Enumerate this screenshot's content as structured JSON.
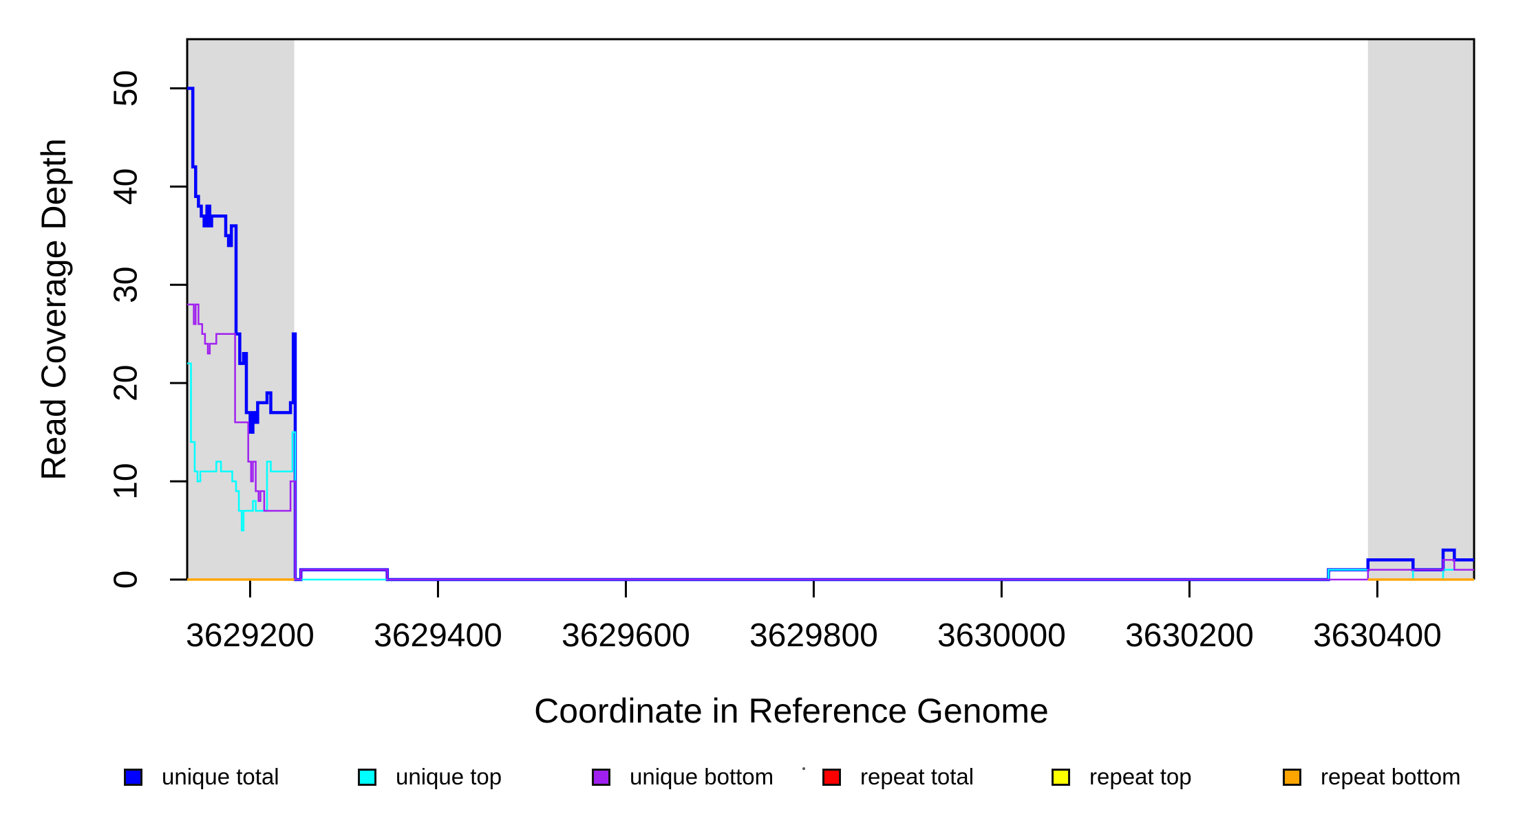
{
  "chart_data": {
    "type": "line",
    "style": "step",
    "title": "",
    "xlabel": "Coordinate in Reference Genome",
    "ylabel": "Read Coverage Depth",
    "xlim": [
      3629133,
      3630503
    ],
    "ylim": [
      0,
      55
    ],
    "x_ticks": [
      3629200,
      3629400,
      3629600,
      3629800,
      3630000,
      3630200,
      3630400
    ],
    "y_ticks": [
      0,
      10,
      20,
      30,
      40,
      50
    ],
    "grid": false,
    "legend_position": "bottom",
    "axis_color": "#000000",
    "shaded_regions": [
      {
        "x1": 3629133,
        "x2": 3629247,
        "color": "#DBDBDB"
      },
      {
        "x1": 3630390,
        "x2": 3630503,
        "color": "#DBDBDB"
      }
    ],
    "series": [
      {
        "name": "unique total",
        "color": "#0000FF",
        "line_width": 4.5,
        "pieces": [
          {
            "bounds": [
              3629133,
              3629139,
              3629142,
              3629145,
              3629148,
              3629151,
              3629154,
              3629157,
              3629159,
              3629174,
              3629177,
              3629180,
              3629185,
              3629189,
              3629193,
              3629196,
              3629200,
              3629203,
              3629206,
              3629208,
              3629218,
              3629222,
              3629243,
              3629246,
              3629248,
              3629254,
              3629346,
              3630348,
              3630390,
              3630438,
              3630470,
              3630482,
              3630503
            ],
            "values": [
              50,
              42,
              39,
              38,
              37,
              36,
              38,
              36,
              37,
              35,
              34,
              36,
              25,
              22,
              23,
              17,
              15,
              17,
              16,
              18,
              19,
              17,
              18,
              25,
              0,
              1,
              0,
              1,
              2,
              1,
              3,
              2
            ]
          }
        ]
      },
      {
        "name": "unique top",
        "color": "#00FFFF",
        "line_width": 2.5,
        "pieces": [
          {
            "bounds": [
              3629133,
              3629137,
              3629141,
              3629144,
              3629147,
              3629164,
              3629169,
              3629181,
              3629185,
              3629188,
              3629191,
              3629193,
              3629203,
              3629206,
              3629218,
              3629222,
              3629245,
              3629248,
              3630348,
              3630438,
              3630470,
              3630503
            ],
            "values": [
              22,
              14,
              11,
              10,
              11,
              12,
              11,
              10,
              9,
              7,
              5,
              7,
              8,
              7,
              12,
              11,
              15,
              0,
              1,
              0,
              1
            ]
          }
        ]
      },
      {
        "name": "unique bottom",
        "color": "#A020F0",
        "line_width": 2.5,
        "pieces": [
          {
            "bounds": [
              3629133,
              3629140,
              3629142,
              3629145,
              3629149,
              3629152,
              3629155,
              3629157,
              3629164,
              3629184,
              3629198,
              3629201,
              3629203,
              3629206,
              3629209,
              3629211,
              3629215,
              3629243,
              3629248,
              3629254,
              3629346,
              3630390,
              3630470,
              3630482,
              3630503
            ],
            "values": [
              28,
              26,
              28,
              26,
              25,
              24,
              23,
              24,
              25,
              16,
              12,
              10,
              12,
              9,
              8,
              9,
              7,
              10,
              0,
              1,
              0,
              1,
              2,
              1
            ]
          }
        ]
      },
      {
        "name": "repeat total",
        "color": "#FF0000",
        "line_width": 2.5,
        "pieces": [
          {
            "bounds": [
              3629133,
              3629247
            ],
            "values": [
              0
            ]
          },
          {
            "bounds": [
              3630390,
              3630503
            ],
            "values": [
              0
            ]
          }
        ]
      },
      {
        "name": "repeat top",
        "color": "#FFFF00",
        "line_width": 2.5,
        "pieces": [
          {
            "bounds": [
              3629133,
              3629247
            ],
            "values": [
              0
            ]
          },
          {
            "bounds": [
              3630390,
              3630503
            ],
            "values": [
              0
            ]
          }
        ]
      },
      {
        "name": "repeat bottom",
        "color": "#FFA500",
        "line_width": 3.5,
        "pieces": [
          {
            "bounds": [
              3629133,
              3629247
            ],
            "values": [
              0
            ]
          },
          {
            "bounds": [
              3630390,
              3630503
            ],
            "values": [
              0
            ]
          }
        ]
      }
    ]
  }
}
